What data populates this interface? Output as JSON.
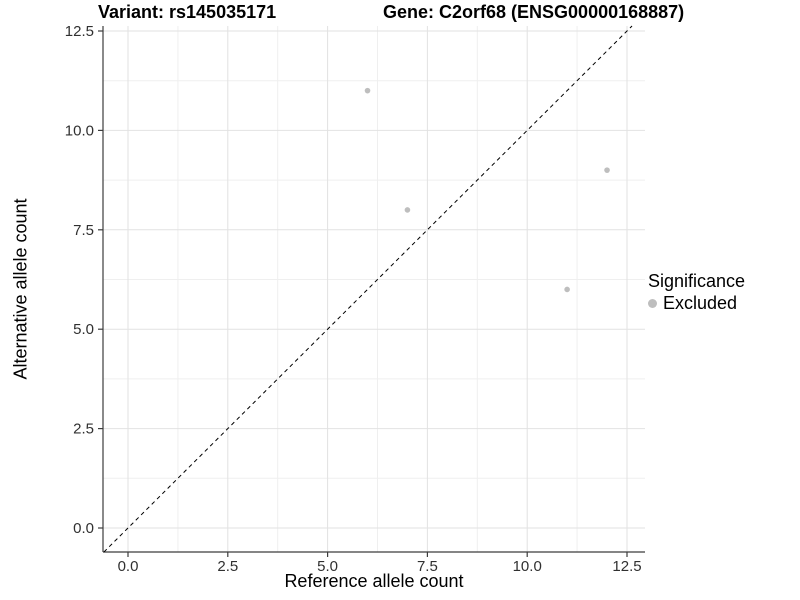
{
  "chart_data": {
    "type": "scatter",
    "title_left": "Variant: rs145035171",
    "title_right": "Gene: C2orf68 (ENSG00000168887)",
    "xlabel": "Reference allele count",
    "ylabel": "Alternative allele count",
    "x_ticks": [
      0.0,
      2.5,
      5.0,
      7.5,
      10.0,
      12.5
    ],
    "y_ticks": [
      0.0,
      2.5,
      5.0,
      7.5,
      10.0,
      12.5
    ],
    "x_tick_labels": [
      "0.0",
      "2.5",
      "5.0",
      "7.5",
      "10.0",
      "12.5"
    ],
    "y_tick_labels": [
      "0.0",
      "2.5",
      "5.0",
      "7.5",
      "10.0",
      "12.5"
    ],
    "xlim": [
      -0.63,
      12.95
    ],
    "ylim": [
      -0.6,
      12.62
    ],
    "grid": true,
    "minor_grid_step": 1.25,
    "series": [
      {
        "name": "Excluded",
        "points": [
          {
            "x": 6,
            "y": 11
          },
          {
            "x": 7,
            "y": 8
          },
          {
            "x": 12,
            "y": 9
          },
          {
            "x": 11,
            "y": 6
          }
        ]
      }
    ],
    "reference_line": {
      "type": "identity",
      "style": "dashed",
      "color": "#000000"
    },
    "legend": {
      "title": "Significance",
      "position": "right",
      "items": [
        {
          "label": "Excluded",
          "color": "#bebebe"
        }
      ]
    },
    "colors": {
      "background": "#ffffff",
      "point": "#bebebe",
      "grid_major": "#e2e2e2",
      "grid_minor": "#efefef",
      "axis_line": "#3c3c3c",
      "tick_text": "#303030",
      "title_text": "#000000"
    }
  }
}
